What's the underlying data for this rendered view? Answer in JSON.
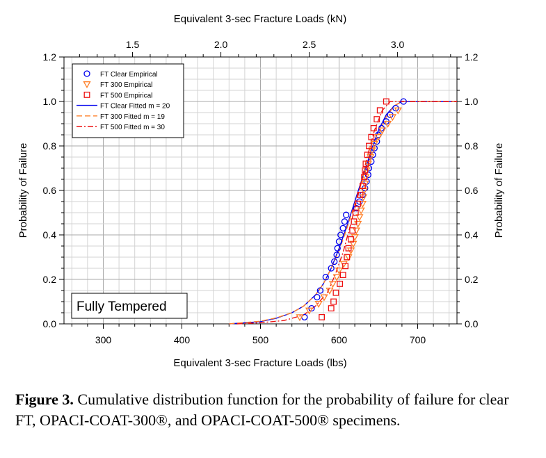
{
  "chart_data": {
    "type": "scatter",
    "title": "",
    "xlabel": "Equivalent 3-sec Fracture Loads (lbs)",
    "x2label": "Equivalent 3-sec Fracture Loads (kN)",
    "ylabel": "Probability of Failure",
    "y2label": "Probability of Failure",
    "xlim": [
      250,
      750
    ],
    "ylim": [
      0,
      1.2
    ],
    "x_ticks": [
      "300",
      "400",
      "500",
      "600",
      "700"
    ],
    "x2_ticks": [
      {
        "label": "1.5",
        "kn": 1.5
      },
      {
        "label": "2.0",
        "kn": 2.0
      },
      {
        "label": "2.5",
        "kn": 2.5
      },
      {
        "label": "3.0",
        "kn": 3.0
      }
    ],
    "y_ticks": [
      "0.0",
      "0.2",
      "0.4",
      "0.6",
      "0.8",
      "1.0",
      "1.2"
    ],
    "grid": true,
    "annotation": "Fully Tempered",
    "legend_position": "top-left",
    "series": [
      {
        "name": "FT Clear Empirical",
        "kind": "scatter",
        "marker": "circle",
        "color": "#0000ee",
        "points": [
          [
            556,
            0.03
          ],
          [
            565,
            0.07
          ],
          [
            572,
            0.12
          ],
          [
            576,
            0.15
          ],
          [
            583,
            0.21
          ],
          [
            590,
            0.25
          ],
          [
            594,
            0.28
          ],
          [
            597,
            0.31
          ],
          [
            598,
            0.34
          ],
          [
            600,
            0.37
          ],
          [
            602,
            0.4
          ],
          [
            605,
            0.43
          ],
          [
            607,
            0.46
          ],
          [
            609,
            0.49
          ],
          [
            622,
            0.52
          ],
          [
            626,
            0.55
          ],
          [
            630,
            0.58
          ],
          [
            633,
            0.61
          ],
          [
            635,
            0.64
          ],
          [
            637,
            0.67
          ],
          [
            638,
            0.7
          ],
          [
            641,
            0.73
          ],
          [
            643,
            0.76
          ],
          [
            645,
            0.79
          ],
          [
            648,
            0.82
          ],
          [
            650,
            0.85
          ],
          [
            654,
            0.88
          ],
          [
            660,
            0.91
          ],
          [
            665,
            0.94
          ],
          [
            672,
            0.97
          ],
          [
            682,
            1.0
          ]
        ]
      },
      {
        "name": "FT 300 Empirical",
        "kind": "scatter",
        "marker": "triangle-down",
        "color": "#ff7f27",
        "points": [
          [
            550,
            0.03
          ],
          [
            562,
            0.06
          ],
          [
            574,
            0.09
          ],
          [
            581,
            0.12
          ],
          [
            588,
            0.15
          ],
          [
            592,
            0.18
          ],
          [
            597,
            0.21
          ],
          [
            600,
            0.24
          ],
          [
            606,
            0.27
          ],
          [
            612,
            0.3
          ],
          [
            615,
            0.33
          ],
          [
            618,
            0.36
          ],
          [
            620,
            0.39
          ],
          [
            622,
            0.42
          ],
          [
            624,
            0.45
          ],
          [
            626,
            0.48
          ],
          [
            628,
            0.51
          ],
          [
            630,
            0.54
          ],
          [
            631,
            0.57
          ],
          [
            632,
            0.6
          ],
          [
            633,
            0.63
          ],
          [
            634,
            0.66
          ],
          [
            635,
            0.69
          ],
          [
            637,
            0.72
          ],
          [
            640,
            0.75
          ],
          [
            642,
            0.78
          ],
          [
            645,
            0.81
          ],
          [
            650,
            0.84
          ],
          [
            655,
            0.87
          ],
          [
            662,
            0.9
          ],
          [
            668,
            0.93
          ],
          [
            675,
            0.96
          ]
        ]
      },
      {
        "name": "FT 500 Empirical",
        "kind": "scatter",
        "marker": "square",
        "color": "#ee1111",
        "points": [
          [
            578,
            0.03
          ],
          [
            590,
            0.07
          ],
          [
            593,
            0.1
          ],
          [
            596,
            0.14
          ],
          [
            601,
            0.18
          ],
          [
            605,
            0.22
          ],
          [
            608,
            0.26
          ],
          [
            610,
            0.3
          ],
          [
            612,
            0.34
          ],
          [
            615,
            0.38
          ],
          [
            617,
            0.42
          ],
          [
            619,
            0.46
          ],
          [
            621,
            0.5
          ],
          [
            624,
            0.54
          ],
          [
            627,
            0.58
          ],
          [
            630,
            0.62
          ],
          [
            632,
            0.66
          ],
          [
            633,
            0.69
          ],
          [
            634,
            0.72
          ],
          [
            636,
            0.76
          ],
          [
            638,
            0.8
          ],
          [
            641,
            0.84
          ],
          [
            644,
            0.88
          ],
          [
            648,
            0.92
          ],
          [
            652,
            0.96
          ],
          [
            660,
            1.0
          ]
        ]
      },
      {
        "name": "FT Clear Fitted m = 20",
        "kind": "line",
        "dash": "solid",
        "color": "#0000ee",
        "points": [
          [
            460,
            0.0
          ],
          [
            480,
            0.005
          ],
          [
            500,
            0.01
          ],
          [
            520,
            0.025
          ],
          [
            540,
            0.05
          ],
          [
            555,
            0.08
          ],
          [
            570,
            0.13
          ],
          [
            580,
            0.18
          ],
          [
            590,
            0.25
          ],
          [
            600,
            0.34
          ],
          [
            610,
            0.44
          ],
          [
            620,
            0.55
          ],
          [
            630,
            0.66
          ],
          [
            640,
            0.77
          ],
          [
            650,
            0.87
          ],
          [
            660,
            0.94
          ],
          [
            670,
            0.98
          ],
          [
            680,
            1.0
          ],
          [
            750,
            1.0
          ]
        ]
      },
      {
        "name": "FT 300 Fitted m = 19",
        "kind": "line",
        "dash": "dash",
        "color": "#ff7f27",
        "points": [
          [
            460,
            0.0
          ],
          [
            480,
            0.006
          ],
          [
            500,
            0.012
          ],
          [
            520,
            0.027
          ],
          [
            540,
            0.05
          ],
          [
            555,
            0.08
          ],
          [
            570,
            0.13
          ],
          [
            580,
            0.18
          ],
          [
            590,
            0.25
          ],
          [
            600,
            0.33
          ],
          [
            610,
            0.43
          ],
          [
            620,
            0.54
          ],
          [
            630,
            0.65
          ],
          [
            640,
            0.75
          ],
          [
            650,
            0.85
          ],
          [
            660,
            0.93
          ],
          [
            670,
            0.98
          ],
          [
            680,
            1.0
          ],
          [
            750,
            1.0
          ]
        ]
      },
      {
        "name": "FT 500 Fitted m = 30",
        "kind": "line",
        "dash": "dashdot",
        "color": "#ee1111",
        "points": [
          [
            470,
            0.0
          ],
          [
            500,
            0.005
          ],
          [
            530,
            0.015
          ],
          [
            555,
            0.04
          ],
          [
            570,
            0.08
          ],
          [
            585,
            0.14
          ],
          [
            595,
            0.22
          ],
          [
            605,
            0.32
          ],
          [
            615,
            0.45
          ],
          [
            625,
            0.59
          ],
          [
            635,
            0.74
          ],
          [
            645,
            0.87
          ],
          [
            655,
            0.96
          ],
          [
            665,
            1.0
          ],
          [
            750,
            1.0
          ]
        ]
      }
    ]
  },
  "caption": {
    "label": "Figure 3.",
    "text": " Cumulative distribution function for the probability of failure for clear FT, OPACI-COAT-300®, and OPACI-COAT-500® specimens."
  }
}
